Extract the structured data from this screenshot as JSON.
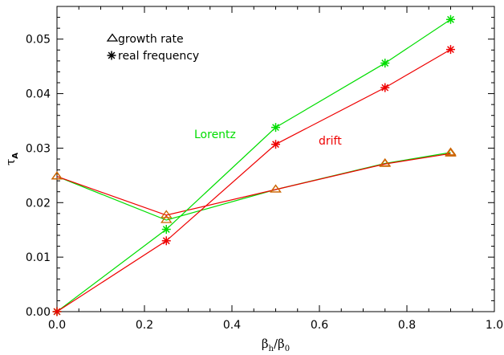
{
  "chart_data": {
    "type": "line",
    "xlabel_main": "β",
    "xlabel_sub": "h",
    "xlabel_sep": "/β",
    "xlabel_sub2": "0",
    "ylabel_main": "τ",
    "ylabel_sub": "A",
    "xlim": [
      0.0,
      1.0
    ],
    "ylim": [
      0.0,
      0.056
    ],
    "xticks": [
      0.0,
      0.2,
      0.4,
      0.6,
      0.8,
      1.0
    ],
    "xtick_labels": [
      "0.0",
      "0.2",
      "0.4",
      "0.6",
      "0.8",
      "1.0"
    ],
    "yticks": [
      0.0,
      0.01,
      0.02,
      0.03,
      0.04,
      0.05
    ],
    "ytick_labels": [
      "0.00",
      "0.01",
      "0.02",
      "0.03",
      "0.04",
      "0.05"
    ],
    "legend": {
      "entries": [
        {
          "marker": "triangle",
          "label": "growth rate"
        },
        {
          "marker": "asterisk",
          "label": "real frequency"
        }
      ]
    },
    "annotations": [
      {
        "text": "Lorentz",
        "color": "#00dd00"
      },
      {
        "text": "drift",
        "color": "#ee0000"
      }
    ],
    "series": [
      {
        "model": "Lorentz",
        "quantity": "growth rate",
        "marker": "triangle",
        "color": "#00dd00",
        "x": [
          0.0,
          0.25,
          0.5,
          0.75,
          0.9
        ],
        "y": [
          0.0248,
          0.0168,
          0.0224,
          0.0272,
          0.0292
        ]
      },
      {
        "model": "drift",
        "quantity": "growth rate",
        "marker": "triangle",
        "color": "#ee0000",
        "x": [
          0.0,
          0.25,
          0.5,
          0.75,
          0.9
        ],
        "y": [
          0.0248,
          0.0177,
          0.0224,
          0.0271,
          0.029
        ]
      },
      {
        "model": "Lorentz",
        "quantity": "real frequency",
        "marker": "asterisk",
        "color": "#00dd00",
        "x": [
          0.0,
          0.25,
          0.5,
          0.75,
          0.9
        ],
        "y": [
          0.0,
          0.0151,
          0.0338,
          0.0456,
          0.0536
        ]
      },
      {
        "model": "drift",
        "quantity": "real frequency",
        "marker": "asterisk",
        "color": "#ee0000",
        "x": [
          0.0,
          0.25,
          0.5,
          0.75,
          0.9
        ],
        "y": [
          0.0,
          0.013,
          0.0307,
          0.0411,
          0.0481
        ]
      }
    ],
    "marker_color": "#cc6600"
  }
}
